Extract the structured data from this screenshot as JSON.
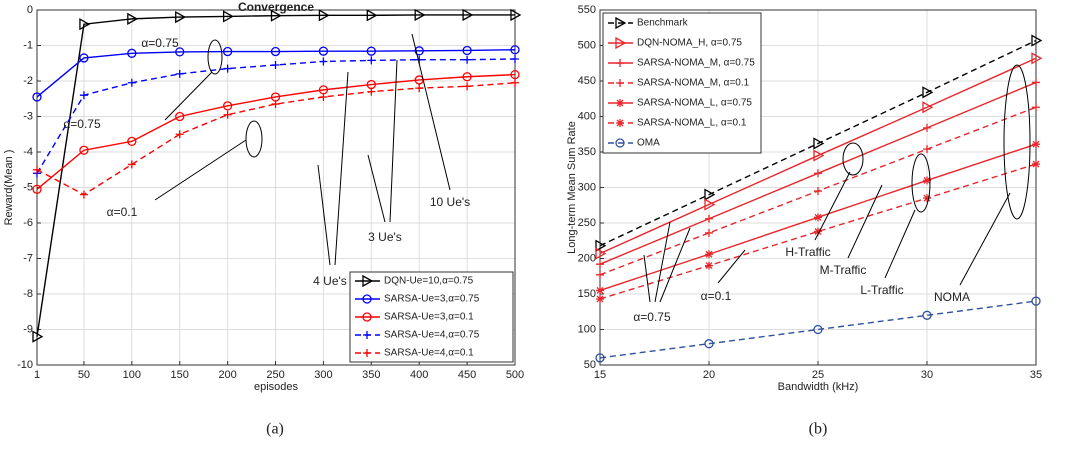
{
  "chart_data": [
    {
      "type": "line",
      "title": "Convergence",
      "xlabel": "episodes",
      "ylabel": "Reward(Mean )",
      "caption": "(a)",
      "x": [
        1,
        50,
        100,
        150,
        200,
        250,
        300,
        350,
        400,
        450,
        500
      ],
      "xlim": [
        1,
        500
      ],
      "xticks": [
        1,
        50,
        100,
        150,
        200,
        250,
        300,
        350,
        400,
        450,
        500
      ],
      "ylim": [
        -10,
        0
      ],
      "yticks": [
        -10,
        -9,
        -8,
        -7,
        -6,
        -5,
        -4,
        -3,
        -2,
        -1,
        0
      ],
      "grid": true,
      "legend": "lower right",
      "series": [
        {
          "name": "DQN-Ue=10,α=0.75",
          "color": "#000000",
          "marker": "triangle",
          "dash": false,
          "values": [
            -9.2,
            -0.4,
            -0.25,
            -0.2,
            -0.18,
            -0.16,
            -0.15,
            -0.15,
            -0.14,
            -0.14,
            -0.14
          ]
        },
        {
          "name": "SARSA-Ue=3,α=0.75",
          "color": "#0000ff",
          "marker": "circle",
          "dash": false,
          "values": [
            -2.45,
            -1.35,
            -1.22,
            -1.18,
            -1.17,
            -1.17,
            -1.16,
            -1.16,
            -1.15,
            -1.14,
            -1.12
          ]
        },
        {
          "name": "SARSA-Ue=3,α=0.1",
          "color": "#ff0000",
          "marker": "circle",
          "dash": false,
          "values": [
            -5.05,
            -3.95,
            -3.7,
            -3.0,
            -2.7,
            -2.45,
            -2.25,
            -2.1,
            -1.97,
            -1.88,
            -1.82
          ]
        },
        {
          "name": "SARSA-Ue=4,α=0.75",
          "color": "#0000ff",
          "marker": "plus",
          "dash": true,
          "values": [
            -4.6,
            -2.4,
            -2.05,
            -1.8,
            -1.65,
            -1.55,
            -1.45,
            -1.42,
            -1.4,
            -1.4,
            -1.38
          ]
        },
        {
          "name": "SARSA-Ue=4,α=0.1",
          "color": "#ff0000",
          "marker": "plus",
          "dash": true,
          "values": [
            -4.5,
            -5.2,
            -4.35,
            -3.5,
            -2.95,
            -2.65,
            -2.45,
            -2.3,
            -2.2,
            -2.15,
            -2.05
          ]
        }
      ],
      "annotations": [
        "α=0.75",
        "α=0.75",
        "α=0.1",
        "4 Ue's",
        "3 Ue's",
        "10 Ue's"
      ]
    },
    {
      "type": "line",
      "xlabel": "Bandwidth (kHz)",
      "ylabel": "Long-term Mean Sum Rate",
      "caption": "(b)",
      "x": [
        15,
        20,
        25,
        30,
        35
      ],
      "xlim": [
        15,
        35
      ],
      "xticks": [
        15,
        20,
        25,
        30,
        35
      ],
      "ylim": [
        50,
        550
      ],
      "yticks": [
        50,
        100,
        150,
        200,
        250,
        300,
        350,
        400,
        450,
        500,
        550
      ],
      "grid": true,
      "legend": "upper left",
      "series": [
        {
          "name": "Benchmark",
          "color": "#000000",
          "marker": "triangle",
          "dash": true,
          "values": [
            218,
            290,
            362,
            434,
            507
          ]
        },
        {
          "name": "DQN-NOMA_H, α=0.75",
          "color": "#e8262b",
          "marker": "triangle",
          "dash": false,
          "values": [
            207,
            276,
            345,
            413,
            482
          ]
        },
        {
          "name": "SARSA-NOMA_M, α=0.75",
          "color": "#e8262b",
          "marker": "plus",
          "dash": false,
          "values": [
            192,
            256,
            320,
            384,
            448
          ]
        },
        {
          "name": "SARSA-NOMA_M, α=0.1",
          "color": "#e8262b",
          "marker": "plus",
          "dash": true,
          "values": [
            177,
            236,
            295,
            354,
            413
          ]
        },
        {
          "name": "SARSA-NOMA_L, α=0.75",
          "color": "#e8262b",
          "marker": "star",
          "dash": false,
          "values": [
            155,
            206,
            258,
            310,
            361
          ]
        },
        {
          "name": "SARSA-NOMA_L, α=0.1",
          "color": "#e8262b",
          "marker": "star",
          "dash": true,
          "values": [
            143,
            190,
            238,
            285,
            333
          ]
        },
        {
          "name": "OMA",
          "color": "#3050a0",
          "marker": "circle",
          "dash": true,
          "values": [
            60,
            80,
            100,
            120,
            140
          ]
        }
      ],
      "annotations": [
        "H-Traffic",
        "M-Traffic",
        "L-Traffic",
        "NOMA",
        "α=0.75",
        "α=0.1"
      ]
    }
  ]
}
